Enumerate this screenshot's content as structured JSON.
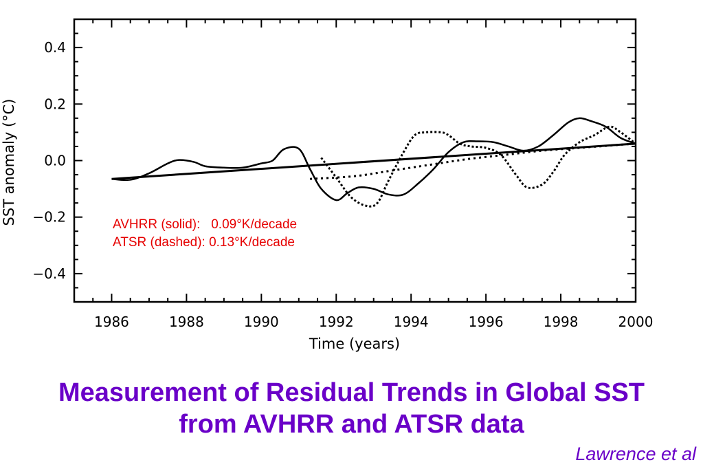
{
  "slide": {
    "title_line1": "Measurement of Residual Trends in Global SST",
    "title_line2": "from AVHRR and ATSR data",
    "credit": "Lawrence et al"
  },
  "chart_data": {
    "type": "line",
    "title": "",
    "xlabel": "Time (years)",
    "ylabel": "SST anomaly (°C)",
    "xlim": [
      1985,
      2000
    ],
    "ylim": [
      -0.5,
      0.5
    ],
    "xticks": [
      1986,
      1988,
      1990,
      1992,
      1994,
      1996,
      1998,
      2000
    ],
    "xtick_labels": [
      "1986",
      "1988",
      "1990",
      "1992",
      "1994",
      "1996",
      "1998",
      "2000"
    ],
    "yticks": [
      -0.4,
      -0.2,
      0.0,
      0.2,
      0.4
    ],
    "ytick_labels": [
      "−0.4",
      "−0.2",
      "0.0",
      "0.2",
      "0.4"
    ],
    "grid": false,
    "annotations": [
      "AVHRR (solid):   0.09°K/decade",
      "ATSR (dashed): 0.13°K/decade"
    ],
    "annotation_color": "#e60000",
    "title_color": "#6a00c8",
    "series": [
      {
        "style": "solid",
        "x": [
          1986.0,
          1986.5,
          1987.0,
          1987.5,
          1987.8,
          1988.2,
          1988.5,
          1989.0,
          1989.5,
          1990.0,
          1990.3,
          1990.6,
          1991.0,
          1991.3,
          1991.6,
          1992.0,
          1992.3,
          1992.6,
          1993.0,
          1993.4,
          1993.8,
          1994.2,
          1994.6,
          1995.0,
          1995.4,
          1995.8,
          1996.2,
          1996.6,
          1997.0,
          1997.4,
          1997.8,
          1998.2,
          1998.5,
          1998.8,
          1999.2,
          1999.6,
          2000.0
        ],
        "y": [
          -0.065,
          -0.068,
          -0.045,
          -0.01,
          0.002,
          -0.005,
          -0.02,
          -0.025,
          -0.025,
          -0.01,
          0.0,
          0.04,
          0.042,
          -0.03,
          -0.1,
          -0.14,
          -0.115,
          -0.095,
          -0.1,
          -0.12,
          -0.12,
          -0.08,
          -0.03,
          0.03,
          0.065,
          0.068,
          0.065,
          0.05,
          0.035,
          0.05,
          0.09,
          0.135,
          0.15,
          0.14,
          0.12,
          0.08,
          0.06
        ]
      },
      {
        "style": "dashed",
        "x": [
          1991.6,
          1992.0,
          1992.4,
          1992.8,
          1993.1,
          1993.4,
          1993.8,
          1994.1,
          1994.4,
          1994.8,
          1995.0,
          1995.3,
          1995.6,
          1996.0,
          1996.4,
          1996.8,
          1997.1,
          1997.5,
          1997.8,
          1998.1,
          1998.5,
          1998.9,
          1999.3,
          1999.6,
          2000.0
        ],
        "y": [
          0.01,
          -0.06,
          -0.13,
          -0.16,
          -0.15,
          -0.07,
          0.03,
          0.09,
          0.1,
          0.1,
          0.09,
          0.06,
          0.05,
          0.045,
          0.02,
          -0.05,
          -0.095,
          -0.085,
          -0.04,
          0.02,
          0.065,
          0.09,
          0.12,
          0.1,
          0.06
        ]
      },
      {
        "style": "dotted",
        "x": [
          1991.3,
          1992.5,
          1993.5,
          1994.5,
          1995.5,
          1996.5,
          1997.5,
          1998.5,
          1999.5,
          2000.0
        ],
        "y": [
          -0.065,
          -0.055,
          -0.035,
          -0.015,
          0.005,
          0.02,
          0.035,
          0.045,
          0.055,
          0.06
        ]
      },
      {
        "style": "solid-trend",
        "x": [
          1986.0,
          2000.0
        ],
        "y": [
          -0.065,
          0.06
        ]
      }
    ]
  }
}
